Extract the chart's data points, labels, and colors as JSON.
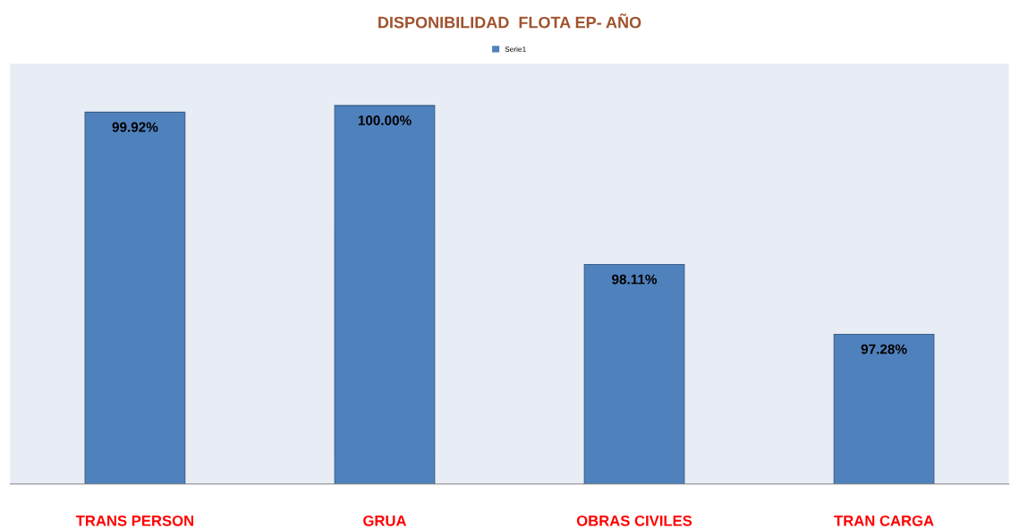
{
  "chart_data": {
    "type": "bar",
    "title": "DISPONIBILIDAD  FLOTA EP- AÑO",
    "categories": [
      "TRANS PERSON",
      "GRUA",
      "OBRAS CIVILES",
      "TRAN CARGA"
    ],
    "series": [
      {
        "name": "Serie1",
        "color": "#4f81bd",
        "values": [
          99.92,
          100.0,
          98.11,
          97.28
        ],
        "value_labels": [
          "99.92%",
          "100.00%",
          "98.11%",
          "97.28%"
        ]
      }
    ],
    "ylim": [
      95.5,
      100.5
    ],
    "tick_labels": "x",
    "legend": "top",
    "grid": false
  }
}
